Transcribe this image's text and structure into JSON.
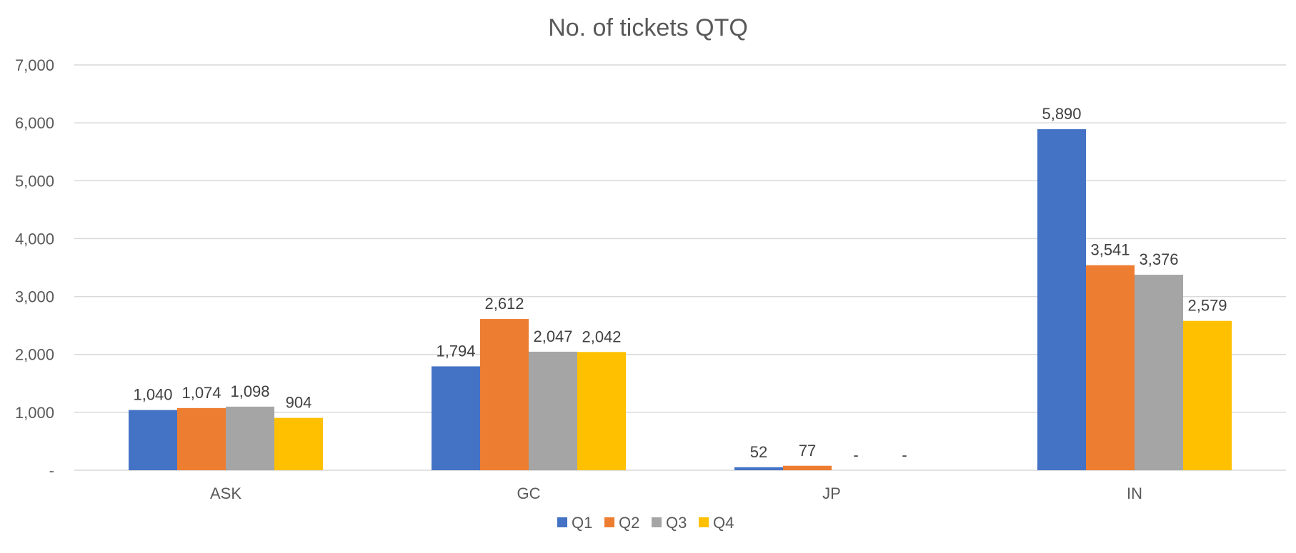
{
  "chart_data": {
    "type": "bar",
    "title": "No. of tickets QTQ",
    "xlabel": "",
    "ylabel": "",
    "categories": [
      "ASK",
      "GC",
      "JP",
      "IN"
    ],
    "series": [
      {
        "name": "Q1",
        "color": "#4472c4",
        "values": [
          1040,
          1794,
          52,
          5890
        ],
        "labels": [
          "1,040",
          "1,794",
          "52",
          "5,890"
        ]
      },
      {
        "name": "Q2",
        "color": "#ed7d31",
        "values": [
          1074,
          2612,
          77,
          3541
        ],
        "labels": [
          "1,074",
          "2,612",
          "77",
          "3,541"
        ]
      },
      {
        "name": "Q3",
        "color": "#a5a5a5",
        "values": [
          1098,
          2047,
          0,
          3376
        ],
        "labels": [
          "1,098",
          "2,047",
          "-",
          "3,376"
        ]
      },
      {
        "name": "Q4",
        "color": "#ffc000",
        "values": [
          904,
          2042,
          0,
          2579
        ],
        "labels": [
          "904",
          "2,042",
          "-",
          "2,579"
        ]
      }
    ],
    "ylim": [
      0,
      7000
    ],
    "yticks": [
      0,
      1000,
      2000,
      3000,
      4000,
      5000,
      6000,
      7000
    ],
    "ytick_labels": [
      "-",
      "1,000",
      "2,000",
      "3,000",
      "4,000",
      "5,000",
      "6,000",
      "7,000"
    ],
    "grid": true,
    "legend": "bottom"
  }
}
